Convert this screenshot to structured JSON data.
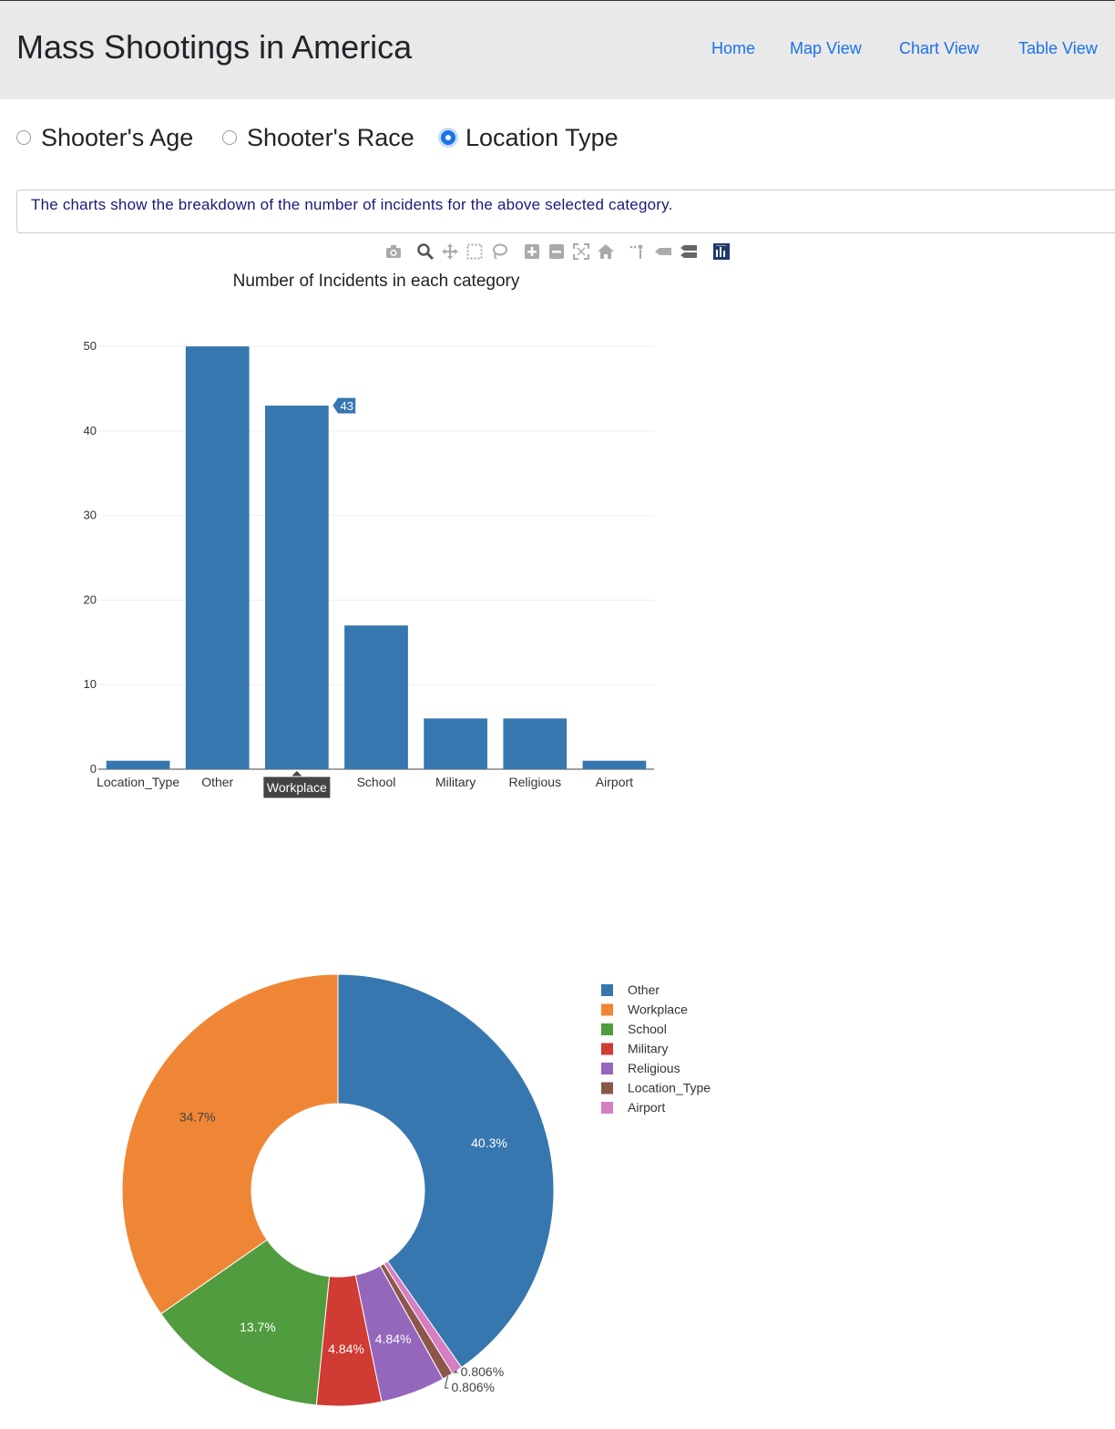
{
  "header": {
    "brand": "Mass Shootings in America",
    "nav": [
      {
        "label": "Home"
      },
      {
        "label": "Map View"
      },
      {
        "label": "Chart View"
      },
      {
        "label": "Table View"
      }
    ]
  },
  "category_selector": {
    "options": [
      {
        "label": "Shooter's Age",
        "checked": false
      },
      {
        "label": "Shooter's Race",
        "checked": false
      },
      {
        "label": "Location Type",
        "checked": true
      }
    ]
  },
  "info": {
    "text": "The charts show the breakdown of the number of incidents for the above selected category."
  },
  "modebar": {
    "icons": [
      "camera-icon",
      "zoom-icon",
      "pan-icon",
      "box-select-icon",
      "lasso-select-icon",
      "zoom-in-icon",
      "zoom-out-icon",
      "autoscale-icon",
      "reset-axes-icon",
      "spike-lines-icon",
      "hover-closest-icon",
      "hover-compare-icon",
      "plotly-logo-icon"
    ]
  },
  "colors": {
    "bar": "#3777af",
    "nav_link": "#1a73e8",
    "info_text": "#1a1a7a",
    "navbar_bg": "#e9e9e9"
  },
  "chart_data": [
    {
      "type": "bar",
      "title": "Number of Incidents in each category",
      "categories": [
        "Location_Type",
        "Other",
        "Workplace",
        "School",
        "Military",
        "Religious",
        "Airport"
      ],
      "values": [
        1,
        50,
        43,
        17,
        6,
        6,
        1
      ],
      "yticks": [
        0,
        10,
        20,
        30,
        40,
        50
      ],
      "ylim": [
        0,
        52.6
      ],
      "grid": true,
      "hover": {
        "category": "Workplace",
        "value": "43"
      }
    },
    {
      "type": "pie",
      "hole": true,
      "legend_position": "right",
      "slices": [
        {
          "label": "Other",
          "value": 40.3,
          "text": "40.3%",
          "color": "#3777af"
        },
        {
          "label": "Airport",
          "value": 0.806,
          "text": "0.806%",
          "color": "#d57ec2"
        },
        {
          "label": "Location_Type",
          "value": 0.806,
          "text": "0.806%",
          "color": "#8c564b"
        },
        {
          "label": "Religious",
          "value": 4.84,
          "text": "4.84%",
          "color": "#9467bd"
        },
        {
          "label": "Military",
          "value": 4.84,
          "text": "4.84%",
          "color": "#d03b33"
        },
        {
          "label": "School",
          "value": 13.7,
          "text": "13.7%",
          "color": "#519c3e"
        },
        {
          "label": "Workplace",
          "value": 34.7,
          "text": "34.7%",
          "color": "#ef8636"
        }
      ],
      "legend": [
        {
          "label": "Other",
          "color": "#3777af"
        },
        {
          "label": "Workplace",
          "color": "#ef8636"
        },
        {
          "label": "School",
          "color": "#519c3e"
        },
        {
          "label": "Military",
          "color": "#d03b33"
        },
        {
          "label": "Religious",
          "color": "#9467bd"
        },
        {
          "label": "Location_Type",
          "color": "#8c564b"
        },
        {
          "label": "Airport",
          "color": "#d57ec2"
        }
      ]
    }
  ]
}
